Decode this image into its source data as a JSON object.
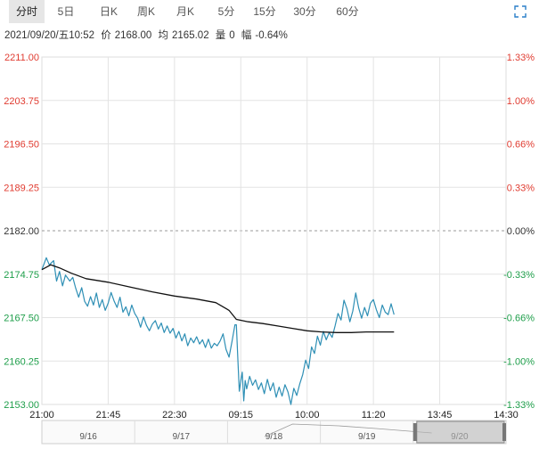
{
  "tabs": [
    {
      "label": "分时",
      "active": true
    },
    {
      "label": "5日",
      "active": false
    },
    {
      "label": "日K",
      "active": false
    },
    {
      "label": "周K",
      "active": false
    },
    {
      "label": "月K",
      "active": false
    },
    {
      "label": "5分",
      "active": false
    },
    {
      "label": "15分",
      "active": false
    },
    {
      "label": "30分",
      "active": false
    },
    {
      "label": "60分",
      "active": false
    }
  ],
  "info": {
    "datetime": "2021/09/20/五10:52",
    "price_label": "价",
    "price": "2168.00",
    "avg_label": "均",
    "avg": "2165.02",
    "volume_label": "量",
    "volume": "0",
    "change_label": "幅",
    "change": "-0.64%"
  },
  "colors": {
    "up": "#e03c31",
    "down": "#1e9e4a",
    "price_line": "#2e8fb5",
    "avg_line": "#111111",
    "grid": "#e3e3e3",
    "ref_line": "#9a9a9a"
  },
  "chart_data": {
    "type": "line",
    "ylim": [
      2153.0,
      2211.0
    ],
    "ref_price": 2182.0,
    "y_ticks_left": [
      "2211.00",
      "2203.75",
      "2196.50",
      "2189.25",
      "2182.00",
      "2174.75",
      "2167.50",
      "2160.25",
      "2153.00"
    ],
    "y_ticks_right": [
      "1.33%",
      "1.00%",
      "0.66%",
      "0.33%",
      "0.00%",
      "-0.33%",
      "-0.66%",
      "-1.00%",
      "-1.33%"
    ],
    "x_ticks": [
      "21:00",
      "21:45",
      "22:30",
      "09:15",
      "10:00",
      "11:20",
      "13:45",
      "14:30"
    ],
    "x_ticks_index": [
      0,
      45,
      90,
      135,
      180,
      225,
      270,
      315
    ],
    "n_slots": 315,
    "series": [
      {
        "name": "",
        "style": "price",
        "points": [
          [
            0,
            2175.5
          ],
          [
            3,
            2177.5
          ],
          [
            5,
            2176.3
          ],
          [
            8,
            2177.0
          ],
          [
            10,
            2173.6
          ],
          [
            12,
            2175.2
          ],
          [
            14,
            2172.8
          ],
          [
            16,
            2174.6
          ],
          [
            19,
            2173.6
          ],
          [
            21,
            2174.2
          ],
          [
            23,
            2172.4
          ],
          [
            25,
            2170.9
          ],
          [
            27,
            2172.5
          ],
          [
            29,
            2170.2
          ],
          [
            31,
            2169.4
          ],
          [
            33,
            2171.0
          ],
          [
            35,
            2169.6
          ],
          [
            37,
            2171.6
          ],
          [
            39,
            2169.2
          ],
          [
            41,
            2170.5
          ],
          [
            43,
            2168.7
          ],
          [
            45,
            2169.9
          ],
          [
            47,
            2171.7
          ],
          [
            49,
            2170.3
          ],
          [
            51,
            2169.2
          ],
          [
            53,
            2170.9
          ],
          [
            55,
            2168.4
          ],
          [
            57,
            2169.3
          ],
          [
            59,
            2167.8
          ],
          [
            61,
            2169.6
          ],
          [
            63,
            2168.2
          ],
          [
            65,
            2167.4
          ],
          [
            67,
            2165.9
          ],
          [
            69,
            2167.6
          ],
          [
            71,
            2166.2
          ],
          [
            73,
            2165.3
          ],
          [
            75,
            2166.4
          ],
          [
            77,
            2167.0
          ],
          [
            79,
            2165.6
          ],
          [
            81,
            2166.6
          ],
          [
            83,
            2165.0
          ],
          [
            85,
            2166.1
          ],
          [
            87,
            2164.9
          ],
          [
            89,
            2165.7
          ],
          [
            91,
            2164.1
          ],
          [
            93,
            2165.2
          ],
          [
            95,
            2163.6
          ],
          [
            97,
            2164.8
          ],
          [
            99,
            2162.8
          ],
          [
            101,
            2164.1
          ],
          [
            103,
            2163.3
          ],
          [
            105,
            2164.3
          ],
          [
            107,
            2163.1
          ],
          [
            109,
            2163.8
          ],
          [
            111,
            2162.5
          ],
          [
            113,
            2163.9
          ],
          [
            115,
            2162.4
          ],
          [
            117,
            2163.2
          ],
          [
            119,
            2162.8
          ],
          [
            121,
            2163.6
          ],
          [
            123,
            2164.8
          ],
          [
            125,
            2162.2
          ],
          [
            127,
            2160.9
          ],
          [
            129,
            2163.5
          ],
          [
            131,
            2166.3
          ],
          [
            132,
            2166.3
          ],
          [
            133,
            2160.5
          ],
          [
            134,
            2155.2
          ],
          [
            135,
            2157.0
          ],
          [
            136,
            2158.4
          ],
          [
            137,
            2153.6
          ],
          [
            138,
            2157.0
          ],
          [
            139,
            2155.6
          ],
          [
            141,
            2157.7
          ],
          [
            143,
            2156.2
          ],
          [
            145,
            2157.1
          ],
          [
            147,
            2155.5
          ],
          [
            149,
            2156.6
          ],
          [
            151,
            2154.8
          ],
          [
            153,
            2157.2
          ],
          [
            155,
            2155.3
          ],
          [
            157,
            2156.6
          ],
          [
            159,
            2154.2
          ],
          [
            161,
            2155.9
          ],
          [
            163,
            2154.4
          ],
          [
            165,
            2156.3
          ],
          [
            167,
            2155.1
          ],
          [
            169,
            2153.0
          ],
          [
            171,
            2155.7
          ],
          [
            173,
            2154.5
          ],
          [
            175,
            2156.4
          ],
          [
            177,
            2158.0
          ],
          [
            179,
            2160.4
          ],
          [
            181,
            2159.0
          ],
          [
            183,
            2162.6
          ],
          [
            185,
            2161.5
          ],
          [
            187,
            2164.4
          ],
          [
            189,
            2162.9
          ],
          [
            191,
            2165.2
          ],
          [
            193,
            2163.8
          ],
          [
            195,
            2165.0
          ],
          [
            197,
            2164.2
          ],
          [
            199,
            2166.1
          ],
          [
            201,
            2168.2
          ],
          [
            203,
            2167.1
          ],
          [
            205,
            2170.4
          ],
          [
            207,
            2169.0
          ],
          [
            209,
            2166.8
          ],
          [
            211,
            2168.6
          ],
          [
            213,
            2171.6
          ],
          [
            215,
            2169.1
          ],
          [
            217,
            2167.4
          ],
          [
            219,
            2169.2
          ],
          [
            221,
            2167.8
          ],
          [
            223,
            2169.9
          ],
          [
            225,
            2170.5
          ],
          [
            227,
            2168.8
          ],
          [
            229,
            2167.5
          ],
          [
            231,
            2169.6
          ],
          [
            233,
            2168.4
          ],
          [
            235,
            2168.0
          ],
          [
            237,
            2169.8
          ],
          [
            239,
            2168.0
          ]
        ]
      },
      {
        "name": "",
        "style": "average",
        "points": [
          [
            0,
            2175.5
          ],
          [
            6,
            2176.3
          ],
          [
            12,
            2175.8
          ],
          [
            20,
            2174.9
          ],
          [
            30,
            2174.0
          ],
          [
            45,
            2173.4
          ],
          [
            60,
            2172.6
          ],
          [
            75,
            2171.8
          ],
          [
            90,
            2171.1
          ],
          [
            105,
            2170.6
          ],
          [
            118,
            2170.0
          ],
          [
            123,
            2169.3
          ],
          [
            127,
            2168.7
          ],
          [
            132,
            2167.2
          ],
          [
            140,
            2166.8
          ],
          [
            150,
            2166.5
          ],
          [
            160,
            2166.1
          ],
          [
            170,
            2165.7
          ],
          [
            180,
            2165.3
          ],
          [
            190,
            2165.1
          ],
          [
            200,
            2165.0
          ],
          [
            210,
            2165.0
          ],
          [
            220,
            2165.1
          ],
          [
            230,
            2165.1
          ],
          [
            239,
            2165.1
          ]
        ]
      }
    ],
    "navigator": {
      "labels": [
        "9/16",
        "9/17",
        "9/18",
        "9/19",
        "9/20"
      ]
    }
  }
}
